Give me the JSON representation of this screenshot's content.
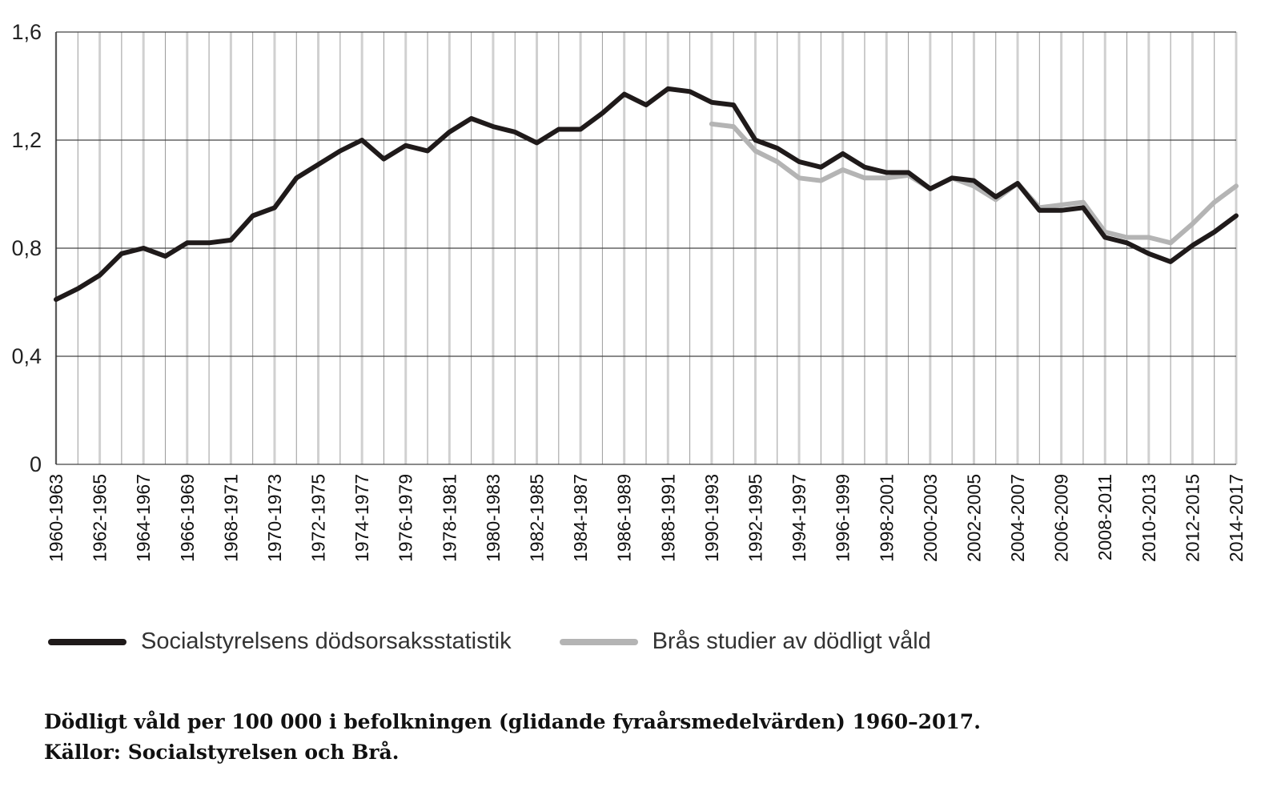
{
  "chart_data": {
    "type": "line",
    "y_ticks": [
      "0",
      "0,4",
      "0,8",
      "1,2",
      "1,6"
    ],
    "ylim": [
      0,
      1.6
    ],
    "grid": true,
    "x": [
      "1960-1963",
      "1961-1964",
      "1962-1965",
      "1963-1966",
      "1964-1967",
      "1965-1968",
      "1966-1969",
      "1967-1970",
      "1968-1971",
      "1969-1972",
      "1970-1973",
      "1971-1974",
      "1972-1975",
      "1973-1976",
      "1974-1977",
      "1975-1978",
      "1976-1979",
      "1977-1980",
      "1978-1981",
      "1979-1982",
      "1980-1983",
      "1981-1984",
      "1982-1985",
      "1983-1986",
      "1984-1987",
      "1985-1988",
      "1986-1989",
      "1987-1990",
      "1988-1991",
      "1989-1992",
      "1990-1993",
      "1991-1994",
      "1992-1995",
      "1993-1996",
      "1994-1997",
      "1995-1998",
      "1996-1999",
      "1997-2000",
      "1998-2001",
      "1999-2002",
      "2000-2003",
      "2001-2004",
      "2002-2005",
      "2003-2006",
      "2004-2007",
      "2005-2008",
      "2006-2009",
      "2007-2010",
      "2008-2011",
      "2009-2012",
      "2010-2013",
      "2011-2014",
      "2012-2015",
      "2013-2016",
      "2014-2017"
    ],
    "x_tick_labels": [
      "1960-1963",
      "1962-1965",
      "1964-1967",
      "1966-1969",
      "1968-1971",
      "1970-1973",
      "1972-1975",
      "1974-1977",
      "1976-1979",
      "1978-1981",
      "1980-1983",
      "1982-1985",
      "1984-1987",
      "1986-1989",
      "1988-1991",
      "1990-1993",
      "1992-1995",
      "1994-1997",
      "1996-1999",
      "1998-2001",
      "2000-2003",
      "2002-2005",
      "2004-2007",
      "2006-2009",
      "2008-2011",
      "2010-2013",
      "2012-2015",
      "2014-2017"
    ],
    "legend_position": "bottom",
    "series": [
      {
        "name": "Socialstyrelsens dödsorsaksstatistik",
        "color": "#1f1a1a",
        "values": [
          0.61,
          0.65,
          0.7,
          0.78,
          0.8,
          0.77,
          0.82,
          0.82,
          0.83,
          0.92,
          0.95,
          1.06,
          1.11,
          1.16,
          1.2,
          1.13,
          1.18,
          1.16,
          1.23,
          1.28,
          1.25,
          1.23,
          1.19,
          1.24,
          1.24,
          1.3,
          1.37,
          1.33,
          1.39,
          1.38,
          1.34,
          1.33,
          1.2,
          1.17,
          1.12,
          1.1,
          1.15,
          1.1,
          1.08,
          1.08,
          1.02,
          1.06,
          1.05,
          0.99,
          1.04,
          0.94,
          0.94,
          0.95,
          0.84,
          0.82,
          0.78,
          0.75,
          0.81,
          0.86,
          0.92
        ]
      },
      {
        "name": "Brås studier av dödligt våld",
        "color": "#b4b4b4",
        "values": [
          null,
          null,
          null,
          null,
          null,
          null,
          null,
          null,
          null,
          null,
          null,
          null,
          null,
          null,
          null,
          null,
          null,
          null,
          null,
          null,
          null,
          null,
          null,
          null,
          null,
          null,
          null,
          null,
          null,
          null,
          1.26,
          1.25,
          1.16,
          1.12,
          1.06,
          1.05,
          1.09,
          1.06,
          1.06,
          1.07,
          1.02,
          1.06,
          1.03,
          0.98,
          1.04,
          0.95,
          0.96,
          0.97,
          0.86,
          0.84,
          0.84,
          0.82,
          0.89,
          0.97,
          1.03
        ]
      }
    ]
  },
  "caption": {
    "line1": "Dödligt våld per 100 000 i befolkningen (glidande fyraårsmedelvärden) 1960–2017.",
    "line2": "Källor: Socialstyrelsen och Brå."
  }
}
